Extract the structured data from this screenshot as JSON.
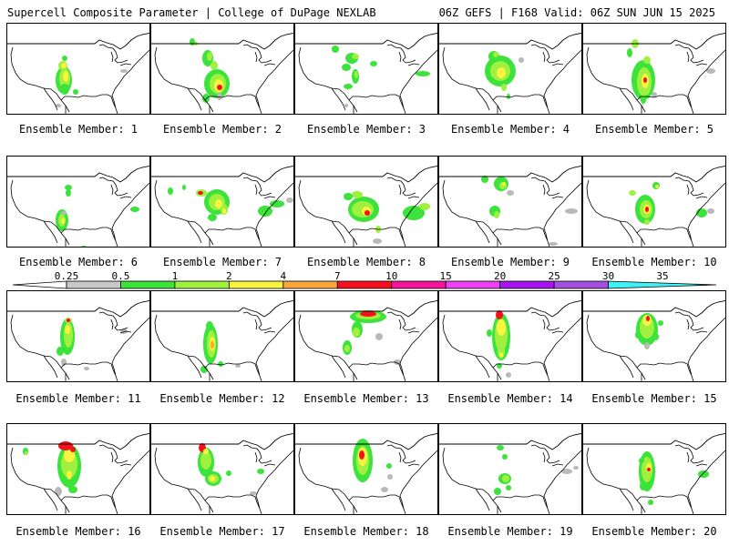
{
  "header": {
    "left": "Supercell Composite Parameter | College of DuPage NEXLAB",
    "right": "06Z GEFS | F168 Valid: 06Z SUN JUN 15 2025"
  },
  "colorbar": {
    "labels": [
      "0.25",
      "0.5",
      "1",
      "2",
      "4",
      "7",
      "10",
      "15",
      "20",
      "25",
      "30",
      "35"
    ],
    "colors": [
      "#c8c8c8",
      "#3be33b",
      "#9ff03f",
      "#fbf43f",
      "#fba53a",
      "#f5101c",
      "#f5149b",
      "#f03ef4",
      "#a614f0",
      "#a44fdf",
      "#3ef2f4"
    ],
    "under_color": "#ffffff"
  },
  "panels": [
    {
      "label": "Ensemble Member: 1"
    },
    {
      "label": "Ensemble Member: 2"
    },
    {
      "label": "Ensemble Member: 3"
    },
    {
      "label": "Ensemble Member: 4"
    },
    {
      "label": "Ensemble Member: 5"
    },
    {
      "label": "Ensemble Member: 6"
    },
    {
      "label": "Ensemble Member: 7"
    },
    {
      "label": "Ensemble Member: 8"
    },
    {
      "label": "Ensemble Member: 9"
    },
    {
      "label": "Ensemble Member: 10"
    },
    {
      "label": "Ensemble Member: 11"
    },
    {
      "label": "Ensemble Member: 12"
    },
    {
      "label": "Ensemble Member: 13"
    },
    {
      "label": "Ensemble Member: 14"
    },
    {
      "label": "Ensemble Member: 15"
    },
    {
      "label": "Ensemble Member: 16"
    },
    {
      "label": "Ensemble Member: 17"
    },
    {
      "label": "Ensemble Member: 18"
    },
    {
      "label": "Ensemble Member: 19"
    },
    {
      "label": "Ensemble Member: 20"
    }
  ]
}
